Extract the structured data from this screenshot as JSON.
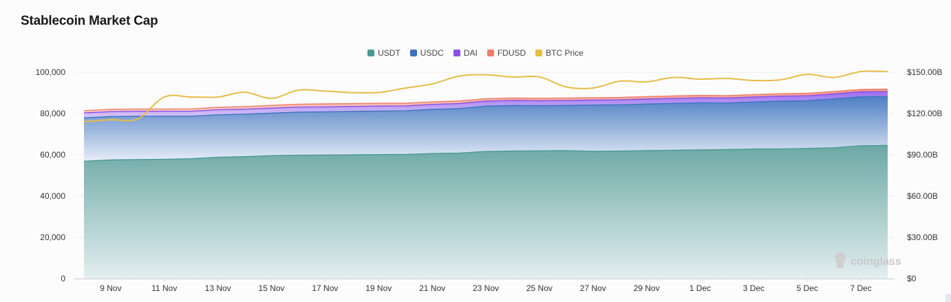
{
  "chart_data": {
    "type": "area",
    "title": "Stablecoin Market Cap",
    "categories": [
      "8 Nov",
      "9 Nov",
      "10 Nov",
      "11 Nov",
      "12 Nov",
      "13 Nov",
      "14 Nov",
      "15 Nov",
      "16 Nov",
      "17 Nov",
      "18 Nov",
      "19 Nov",
      "20 Nov",
      "21 Nov",
      "22 Nov",
      "23 Nov",
      "24 Nov",
      "25 Nov",
      "26 Nov",
      "27 Nov",
      "28 Nov",
      "29 Nov",
      "30 Nov",
      "1 Dec",
      "2 Dec",
      "3 Dec",
      "4 Dec",
      "5 Dec",
      "6 Dec",
      "7 Dec",
      "8 Dec"
    ],
    "x_tick_labels": [
      "9 Nov",
      "11 Nov",
      "13 Nov",
      "15 Nov",
      "17 Nov",
      "19 Nov",
      "21 Nov",
      "23 Nov",
      "25 Nov",
      "27 Nov",
      "29 Nov",
      "1 Dec",
      "3 Dec",
      "5 Dec",
      "7 Dec"
    ],
    "y_left": {
      "ylim": [
        0,
        100000
      ],
      "ticks": [
        "0",
        "20,000",
        "40,000",
        "60,000",
        "80,000",
        "100,000"
      ]
    },
    "y_right": {
      "ylim": [
        0,
        150
      ],
      "unit": "B",
      "ticks": [
        "$0",
        "$30.00B",
        "$60.00B",
        "$90.00B",
        "$120.00B",
        "$150.00B"
      ]
    },
    "series": [
      {
        "name": "USDT",
        "color": "#4a9a94",
        "axis": "left",
        "stacked": true,
        "values": [
          56900,
          57500,
          57700,
          57800,
          58100,
          58800,
          59100,
          59600,
          59800,
          59900,
          60000,
          60100,
          60200,
          60600,
          60800,
          61600,
          61800,
          61900,
          62000,
          61700,
          61800,
          62000,
          62200,
          62400,
          62500,
          62800,
          62800,
          63100,
          63400,
          64400,
          64500
        ]
      },
      {
        "name": "USDC",
        "color": "#3f72c0",
        "axis": "left",
        "stacked": true,
        "values": [
          21000,
          21000,
          21000,
          20900,
          20600,
          20600,
          20600,
          20600,
          20900,
          20900,
          21000,
          21100,
          21100,
          21400,
          21600,
          22000,
          22100,
          21900,
          21900,
          22400,
          22400,
          22600,
          22700,
          22800,
          22600,
          22800,
          23200,
          23100,
          23700,
          23700,
          23700
        ]
      },
      {
        "name": "DAI",
        "color": "#8a4fe8",
        "axis": "left",
        "stacked": true,
        "values": [
          2400,
          2400,
          2400,
          2400,
          2400,
          2400,
          2400,
          2400,
          2400,
          2400,
          2400,
          2400,
          2400,
          2400,
          2400,
          2400,
          2400,
          2400,
          2400,
          2400,
          2400,
          2400,
          2400,
          2400,
          2400,
          2400,
          2400,
          2400,
          2400,
          2400,
          2400
        ]
      },
      {
        "name": "FDUSD",
        "color": "#ef7d6b",
        "axis": "left",
        "stacked": true,
        "values": [
          1100,
          1100,
          1100,
          1100,
          1150,
          1200,
          1250,
          1350,
          1400,
          1450,
          1400,
          1350,
          1300,
          1250,
          1250,
          1200,
          1200,
          1200,
          1200,
          1200,
          1200,
          1200,
          1200,
          1200,
          1200,
          1200,
          1200,
          1200,
          1200,
          1200,
          1200
        ]
      },
      {
        "name": "BTC Price",
        "color": "#e6bc46",
        "axis": "right",
        "stacked": false,
        "values": [
          114,
          115.5,
          116,
          132,
          132,
          132,
          135.5,
          131,
          137,
          136.3,
          135.2,
          135.3,
          138.5,
          141.5,
          147.2,
          148.2,
          146.5,
          146.6,
          139.3,
          138.5,
          143.5,
          143,
          146.2,
          145,
          145.5,
          144,
          144.5,
          148.5,
          146.2,
          150.5,
          150.5
        ]
      }
    ],
    "legend": [
      "USDT",
      "USDC",
      "DAI",
      "FDUSD",
      "BTC Price"
    ],
    "legend_position": "top-center",
    "grid": true
  },
  "watermark": "coinglass"
}
